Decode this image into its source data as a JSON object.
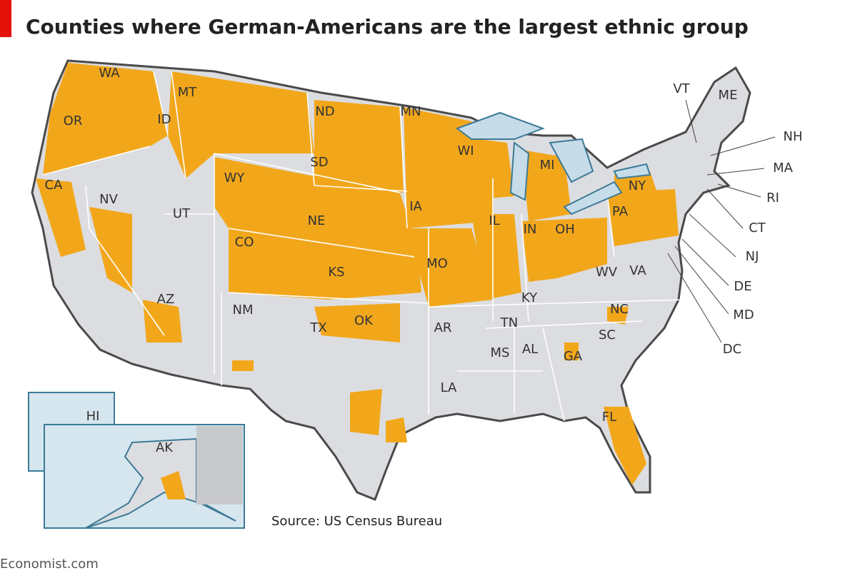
{
  "header": {
    "title": "Counties where German-Americans are the largest ethnic group"
  },
  "map": {
    "states": [
      "WA",
      "OR",
      "CA",
      "NV",
      "ID",
      "MT",
      "WY",
      "UT",
      "AZ",
      "CO",
      "NM",
      "ND",
      "SD",
      "NE",
      "KS",
      "OK",
      "TX",
      "MN",
      "IA",
      "MO",
      "AR",
      "LA",
      "WI",
      "IL",
      "MI",
      "IN",
      "OH",
      "KY",
      "TN",
      "MS",
      "AL",
      "GA",
      "FL",
      "SC",
      "NC",
      "VA",
      "WV",
      "PA",
      "NY",
      "VT",
      "ME",
      "NH",
      "MA",
      "RI",
      "CT",
      "NJ",
      "DE",
      "MD",
      "DC",
      "HI",
      "AK"
    ]
  },
  "source": "Source: US Census Bureau",
  "footer": "Economist.com"
}
